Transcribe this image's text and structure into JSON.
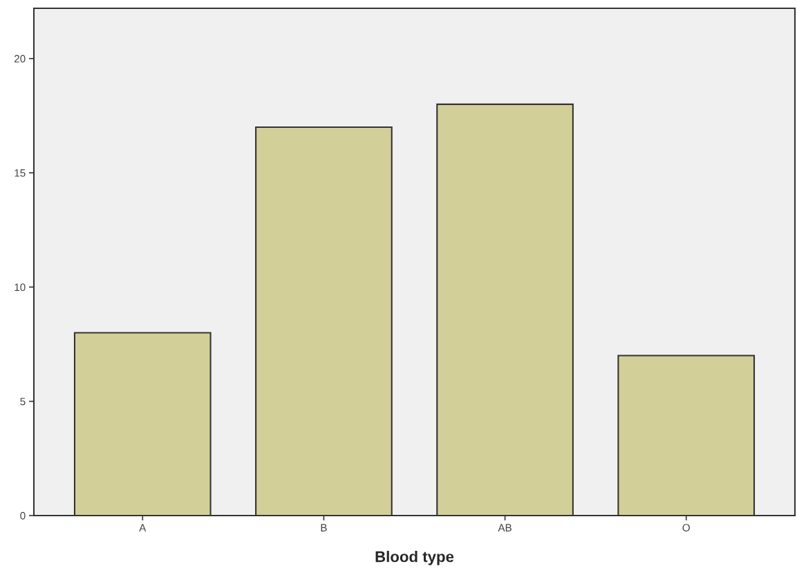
{
  "chart_data": {
    "type": "bar",
    "xlabel": "Blood type",
    "categories": [
      "A",
      "B",
      "AB",
      "O"
    ],
    "values": [
      8,
      17,
      18,
      7
    ],
    "color": "#d3cf98",
    "ylim": [
      0,
      22.2
    ],
    "yticks": [
      0,
      5,
      10,
      15,
      20
    ],
    "grid": false,
    "legend": false
  }
}
